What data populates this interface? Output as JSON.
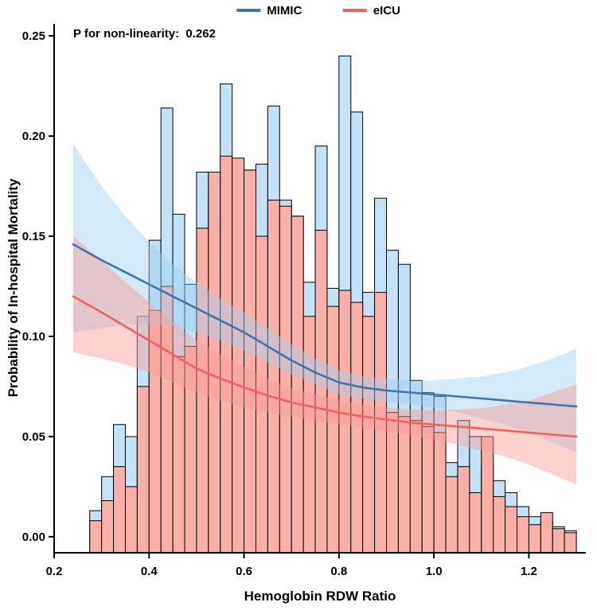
{
  "chart_data": {
    "type": "combo-histogram-spline",
    "title": "",
    "xlabel": "Hemoglobin RDW Ratio",
    "ylabel": "Probability of In-hospital Mortality",
    "annotation": "P for non-linearity:  0.262",
    "xlim": [
      0.2,
      1.32
    ],
    "ylim": [
      -0.008,
      0.256
    ],
    "xticks": [
      0.2,
      0.4,
      0.6,
      0.8,
      1.0,
      1.2
    ],
    "yticks": [
      0.0,
      0.05,
      0.1,
      0.15,
      0.2,
      0.25
    ],
    "grid": false,
    "legend_position": "top-center",
    "legend": [
      {
        "name": "MIMIC",
        "color": "#3E76AD"
      },
      {
        "name": "eICU",
        "color": "#F4615C"
      }
    ],
    "histogram": {
      "bin_start": 0.275,
      "bin_width": 0.025,
      "series": [
        {
          "name": "MIMIC",
          "fill": "#C4E1F6",
          "stroke": "#000000",
          "values": [
            0.013,
            0.03,
            0.056,
            0.05,
            0.11,
            0.148,
            0.214,
            0.161,
            0.126,
            0.182,
            0.17,
            0.226,
            0.185,
            0.183,
            0.186,
            0.215,
            0.168,
            0.16,
            0.127,
            0.195,
            0.124,
            0.24,
            0.212,
            0.122,
            0.169,
            0.143,
            0.136,
            0.078,
            0.072,
            0.07,
            0.037,
            0.058,
            0.05,
            0.035,
            0.028,
            0.022,
            0.015,
            0.01,
            0.008,
            0.005,
            0.003
          ]
        },
        {
          "name": "eICU",
          "fill": "#FBAFA9",
          "stroke": "#000000",
          "values": [
            0.008,
            0.018,
            0.035,
            0.025,
            0.075,
            0.113,
            0.125,
            0.09,
            0.095,
            0.154,
            0.182,
            0.19,
            0.189,
            0.183,
            0.15,
            0.168,
            0.165,
            0.16,
            0.11,
            0.153,
            0.115,
            0.123,
            0.117,
            0.11,
            0.122,
            0.062,
            0.06,
            0.058,
            0.055,
            0.052,
            0.03,
            0.035,
            0.022,
            0.05,
            0.02,
            0.015,
            0.01,
            0.006,
            0.012,
            0.004,
            0.002
          ]
        }
      ]
    },
    "splines": [
      {
        "name": "MIMIC",
        "color": "#3E76AD",
        "band_color": "#9FCFEF",
        "band_opacity": 0.45,
        "x": [
          0.24,
          0.3,
          0.35,
          0.4,
          0.45,
          0.5,
          0.55,
          0.6,
          0.65,
          0.7,
          0.75,
          0.8,
          0.85,
          0.9,
          0.95,
          1.0,
          1.05,
          1.1,
          1.15,
          1.2,
          1.25,
          1.3
        ],
        "y": [
          0.146,
          0.138,
          0.132,
          0.126,
          0.12,
          0.114,
          0.108,
          0.102,
          0.095,
          0.088,
          0.082,
          0.077,
          0.0745,
          0.073,
          0.072,
          0.071,
          0.07,
          0.069,
          0.068,
          0.067,
          0.066,
          0.065
        ],
        "upper": [
          0.196,
          0.175,
          0.16,
          0.147,
          0.136,
          0.127,
          0.119,
          0.112,
          0.104,
          0.096,
          0.089,
          0.083,
          0.08,
          0.079,
          0.078,
          0.078,
          0.079,
          0.08,
          0.082,
          0.085,
          0.089,
          0.094
        ],
        "lower": [
          0.102,
          0.104,
          0.106,
          0.106,
          0.105,
          0.102,
          0.098,
          0.093,
          0.087,
          0.081,
          0.076,
          0.071,
          0.069,
          0.0675,
          0.066,
          0.0645,
          0.062,
          0.059,
          0.056,
          0.052,
          0.047,
          0.042
        ]
      },
      {
        "name": "eICU",
        "color": "#F4615C",
        "band_color": "#F79C97",
        "band_opacity": 0.45,
        "x": [
          0.24,
          0.3,
          0.35,
          0.4,
          0.45,
          0.5,
          0.55,
          0.6,
          0.65,
          0.7,
          0.75,
          0.8,
          0.85,
          0.9,
          0.95,
          1.0,
          1.05,
          1.1,
          1.15,
          1.2,
          1.25,
          1.3
        ],
        "y": [
          0.12,
          0.112,
          0.105,
          0.098,
          0.091,
          0.084,
          0.079,
          0.0745,
          0.0705,
          0.067,
          0.0645,
          0.062,
          0.06,
          0.0585,
          0.057,
          0.056,
          0.055,
          0.054,
          0.053,
          0.052,
          0.051,
          0.05
        ],
        "upper": [
          0.15,
          0.138,
          0.127,
          0.117,
          0.107,
          0.098,
          0.091,
          0.085,
          0.079,
          0.074,
          0.071,
          0.068,
          0.066,
          0.0645,
          0.0635,
          0.063,
          0.0635,
          0.064,
          0.066,
          0.068,
          0.072,
          0.076
        ],
        "lower": [
          0.092,
          0.089,
          0.086,
          0.082,
          0.077,
          0.072,
          0.068,
          0.0645,
          0.062,
          0.06,
          0.058,
          0.056,
          0.054,
          0.0525,
          0.0505,
          0.0485,
          0.046,
          0.043,
          0.04,
          0.036,
          0.031,
          0.026
        ]
      }
    ]
  }
}
